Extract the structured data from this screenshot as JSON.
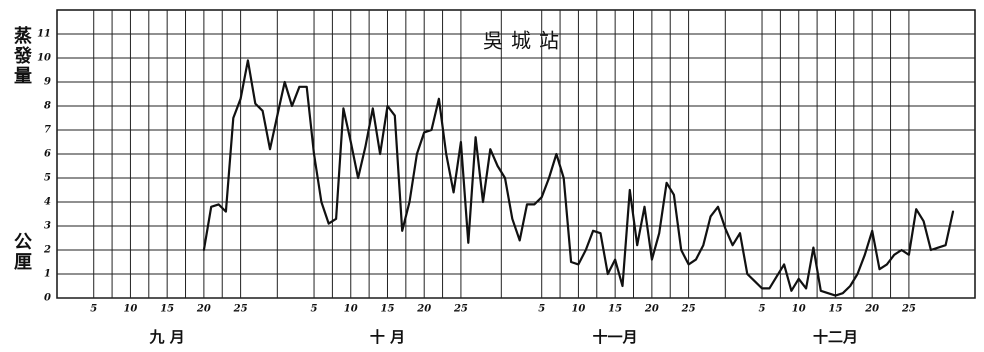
{
  "chart_data": {
    "type": "line",
    "title": "吳城站",
    "y_label": "蒸發量",
    "y_unit": "公厘",
    "months": [
      "九 月",
      "十 月",
      "十一月",
      "十二月"
    ],
    "xlim": [
      0,
      125
    ],
    "xticks": [
      5,
      10,
      15,
      20,
      25,
      {
        "value": 35,
        "label": "5"
      },
      {
        "value": 40,
        "label": "10"
      },
      {
        "value": 45,
        "label": "15"
      },
      {
        "value": 50,
        "label": "20"
      },
      {
        "value": 55,
        "label": "25"
      },
      {
        "value": 66,
        "label": "5"
      },
      {
        "value": 71,
        "label": "10"
      },
      {
        "value": 76,
        "label": "15"
      },
      {
        "value": 81,
        "label": "20"
      },
      {
        "value": 86,
        "label": "25"
      },
      {
        "value": 96,
        "label": "5"
      },
      {
        "value": 101,
        "label": "10"
      },
      {
        "value": 106,
        "label": "15"
      },
      {
        "value": 111,
        "label": "20"
      },
      {
        "value": 116,
        "label": "25"
      }
    ],
    "ylim": [
      0,
      12
    ],
    "yticks": [
      0,
      1,
      2,
      3,
      4,
      5,
      6,
      7,
      8,
      9,
      10,
      11
    ],
    "grid": true,
    "color": "#111111",
    "x": [
      20,
      21,
      22,
      23,
      24,
      25,
      26,
      27,
      28,
      29,
      30,
      31,
      32,
      33,
      34,
      35,
      36,
      37,
      38,
      39,
      40,
      41,
      42,
      43,
      44,
      45,
      46,
      47,
      48,
      49,
      50,
      51,
      52,
      53,
      54,
      55,
      56,
      57,
      58,
      59,
      60,
      61,
      62,
      63,
      64,
      65,
      66,
      67,
      68,
      69,
      70,
      71,
      72,
      73,
      74,
      75,
      76,
      77,
      78,
      79,
      80,
      81,
      82,
      83,
      84,
      85,
      86,
      87,
      88,
      89,
      90,
      91,
      92,
      93,
      94,
      95,
      96,
      97,
      98,
      99,
      100,
      101,
      102,
      103,
      104,
      105,
      106,
      107,
      108,
      109,
      110,
      111,
      112,
      113,
      114,
      115,
      116,
      117,
      118,
      119,
      120,
      121,
      122
    ],
    "values": [
      2.0,
      3.8,
      3.9,
      3.6,
      7.5,
      8.3,
      9.9,
      8.1,
      7.8,
      6.2,
      7.6,
      9.0,
      8.0,
      8.8,
      8.8,
      6.0,
      4.0,
      3.1,
      3.3,
      7.9,
      6.5,
      5.0,
      6.3,
      7.9,
      6.0,
      8.0,
      7.6,
      2.8,
      4.0,
      6.0,
      6.9,
      7.0,
      8.3,
      6.0,
      4.4,
      6.5,
      2.3,
      6.7,
      4.0,
      6.2,
      5.5,
      5.0,
      3.3,
      2.4,
      3.9,
      3.9,
      4.2,
      5.0,
      6.0,
      5.0,
      1.5,
      1.4,
      2.0,
      2.8,
      2.7,
      1.0,
      1.6,
      0.5,
      4.5,
      2.2,
      3.8,
      1.6,
      2.7,
      4.8,
      4.3,
      2.0,
      1.4,
      1.6,
      2.2,
      3.4,
      3.8,
      2.9,
      2.2,
      2.7,
      1.0,
      0.7,
      0.4,
      0.4,
      0.9,
      1.4,
      0.3,
      0.8,
      0.4,
      2.1,
      0.3,
      0.2,
      0.1,
      0.2,
      0.5,
      1.0,
      1.8,
      2.8,
      1.2,
      1.4,
      1.8,
      2.0,
      1.8,
      3.7,
      3.2,
      2.0,
      2.1,
      2.2,
      3.6
    ]
  }
}
